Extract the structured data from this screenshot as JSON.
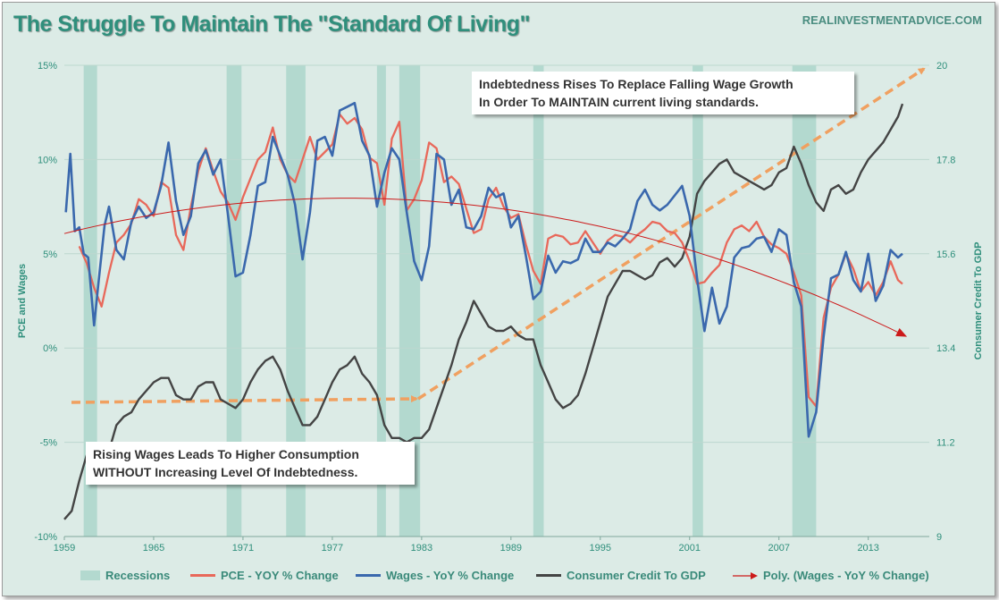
{
  "title": "The Struggle To Maintain The \"Standard Of Living\"",
  "source": "REALINVESTMENTADVICE.COM",
  "annotations": [
    "Indebtedness Rises To Replace Falling Wage Growth\nIn Order To MAINTAIN current living standards.",
    "Rising Wages Leads To Higher Consumption\nWITHOUT Increasing Level Of Indebtedness."
  ],
  "chart_data": {
    "type": "line",
    "title": "The Struggle To Maintain The \"Standard Of Living\"",
    "ylabel": "PCE and Wages",
    "y2label": "Consumer Credit To GDP",
    "x_ticks": [
      "1959",
      "1965",
      "1971",
      "1977",
      "1983",
      "1989",
      "1995",
      "2001",
      "2007",
      "2013"
    ],
    "y_ticks": [
      "15%",
      "10%",
      "5%",
      "0%",
      "-5%",
      "-10%"
    ],
    "y2_ticks": [
      "20",
      "17.8",
      "15.6",
      "13.4",
      "11.2",
      "9"
    ],
    "ylim": [
      -10,
      15
    ],
    "y2lim": [
      9,
      20
    ],
    "xlim": [
      1959,
      2017.1
    ],
    "recessions": [
      [
        1960.3,
        1961.2
      ],
      [
        1969.9,
        1970.9
      ],
      [
        1973.9,
        1975.2
      ],
      [
        1980.0,
        1980.6
      ],
      [
        1981.5,
        1982.9
      ],
      [
        1990.5,
        1991.2
      ],
      [
        2001.2,
        2001.9
      ],
      [
        2007.9,
        2009.5
      ]
    ],
    "legend": [
      "Recessions",
      "PCE - YOY % Change",
      "Wages - YoY % Change",
      "Consumer Credit To GDP",
      "Poly. (Wages - YoY % Change)"
    ],
    "colors": {
      "recession": "#b3d9cf",
      "pce": "#e8685a",
      "wages": "#3a68ad",
      "credit": "#444444",
      "poly": "#cc1a1a",
      "arrow": "#f0a060",
      "grid": "#bcd8cf"
    },
    "series": [
      {
        "name": "PCE - YOY % Change",
        "axis": "left",
        "x": [
          1960,
          1960.5,
          1961,
          1961.5,
          1962,
          1962.5,
          1963,
          1963.5,
          1964,
          1964.5,
          1965,
          1965.5,
          1966,
          1966.5,
          1967,
          1967.5,
          1968,
          1968.5,
          1969,
          1969.5,
          1970,
          1970.5,
          1971,
          1971.5,
          1972,
          1972.5,
          1973,
          1973.5,
          1974,
          1974.5,
          1975,
          1975.5,
          1976,
          1976.5,
          1977,
          1977.5,
          1978,
          1978.5,
          1979,
          1979.5,
          1980,
          1980.5,
          1981,
          1981.5,
          1982,
          1982.5,
          1983,
          1983.5,
          1984,
          1984.5,
          1985,
          1985.5,
          1986,
          1986.5,
          1987,
          1987.5,
          1988,
          1988.5,
          1989,
          1989.5,
          1990,
          1990.5,
          1991,
          1991.5,
          1992,
          1992.5,
          1993,
          1993.5,
          1994,
          1994.5,
          1995,
          1995.5,
          1996,
          1996.5,
          1997,
          1997.5,
          1998,
          1998.5,
          1999,
          1999.5,
          2000,
          2000.5,
          2001,
          2001.5,
          2002,
          2002.5,
          2003,
          2003.5,
          2004,
          2004.5,
          2005,
          2005.5,
          2006,
          2006.5,
          2007,
          2007.5,
          2008,
          2008.5,
          2009,
          2009.5,
          2010,
          2010.5,
          2011,
          2011.5,
          2012,
          2012.5,
          2013,
          2013.5,
          2014,
          2014.5,
          2015,
          2015.3
        ],
        "y": [
          5.4,
          4.5,
          3.2,
          2.2,
          4.0,
          5.6,
          6.0,
          6.6,
          7.9,
          7.6,
          7.0,
          8.8,
          8.5,
          6.0,
          5.2,
          7.5,
          9.4,
          10.6,
          9.4,
          8.3,
          7.7,
          6.8,
          8.0,
          9.0,
          10.0,
          10.4,
          11.7,
          10.0,
          9.2,
          8.8,
          10.0,
          11.2,
          10.0,
          10.4,
          10.8,
          12.4,
          11.9,
          12.2,
          11.6,
          10.1,
          9.8,
          7.6,
          11.1,
          12.0,
          7.3,
          7.9,
          8.9,
          10.9,
          10.6,
          8.8,
          9.1,
          8.7,
          7.4,
          6.1,
          6.3,
          7.9,
          8.5,
          7.5,
          6.9,
          7.1,
          5.5,
          4.1,
          3.4,
          5.8,
          6.0,
          5.9,
          5.5,
          5.6,
          6.2,
          5.6,
          5.0,
          5.7,
          6.0,
          5.9,
          5.6,
          6.0,
          6.3,
          6.7,
          6.6,
          6.2,
          6.1,
          5.6,
          4.6,
          3.4,
          3.5,
          4.0,
          4.4,
          5.6,
          6.3,
          6.5,
          6.2,
          6.7,
          5.9,
          5.5,
          5.3,
          5.0,
          4.0,
          2.8,
          -2.6,
          -3.1,
          1.6,
          3.2,
          3.9,
          5.0,
          4.2,
          3.0,
          3.5,
          2.8,
          3.5,
          4.6,
          3.6,
          3.4
        ]
      },
      {
        "name": "Wages - YoY % Change",
        "axis": "left",
        "x": [
          1959.1,
          1959.4,
          1959.7,
          1960,
          1960.3,
          1960.6,
          1961,
          1961.3,
          1961.7,
          1962,
          1962.5,
          1963,
          1963.5,
          1964,
          1964.5,
          1965,
          1965.5,
          1966,
          1966.5,
          1967,
          1967.5,
          1968,
          1968.5,
          1969,
          1969.5,
          1970,
          1970.5,
          1971,
          1971.5,
          1972,
          1972.5,
          1973,
          1973.5,
          1974,
          1974.5,
          1975,
          1975.5,
          1976,
          1976.5,
          1977,
          1977.5,
          1978,
          1978.5,
          1979,
          1979.5,
          1980,
          1980.5,
          1981,
          1981.5,
          1982,
          1982.5,
          1983,
          1983.5,
          1984,
          1984.5,
          1985,
          1985.5,
          1986,
          1986.5,
          1987,
          1987.5,
          1988,
          1988.5,
          1989,
          1989.5,
          1990,
          1990.5,
          1991,
          1991.5,
          1992,
          1992.5,
          1993,
          1993.5,
          1994,
          1994.5,
          1995,
          1995.5,
          1996,
          1996.5,
          1997,
          1997.5,
          1998,
          1998.5,
          1999,
          1999.5,
          2000,
          2000.5,
          2001,
          2001.5,
          2002,
          2002.5,
          2003,
          2003.5,
          2004,
          2004.5,
          2005,
          2005.5,
          2006,
          2006.5,
          2007,
          2007.5,
          2008,
          2008.5,
          2009,
          2009.5,
          2010,
          2010.5,
          2011,
          2011.5,
          2012,
          2012.5,
          2013,
          2013.5,
          2014,
          2014.5,
          2015,
          2015.3
        ],
        "y": [
          7.2,
          10.3,
          6.2,
          6.4,
          5.0,
          4.8,
          1.2,
          3.5,
          6.5,
          7.5,
          5.2,
          4.7,
          6.7,
          7.5,
          6.9,
          7.2,
          8.6,
          10.9,
          7.8,
          6.0,
          7.0,
          9.8,
          10.5,
          9.2,
          10.0,
          7.0,
          3.8,
          4.0,
          6.0,
          8.6,
          8.8,
          11.2,
          10.2,
          9.2,
          7.6,
          4.7,
          7.2,
          11.0,
          11.2,
          10.2,
          12.6,
          12.8,
          13.0,
          11.0,
          10.2,
          7.5,
          9.3,
          10.6,
          10.0,
          7.2,
          4.6,
          3.6,
          5.4,
          10.3,
          10.0,
          7.6,
          8.4,
          6.4,
          6.3,
          7.0,
          8.5,
          8.0,
          8.2,
          6.4,
          7.0,
          4.9,
          2.6,
          3.0,
          4.9,
          4.0,
          4.6,
          4.5,
          4.7,
          5.8,
          5.1,
          5.1,
          5.6,
          5.4,
          5.8,
          6.3,
          7.8,
          8.4,
          7.6,
          7.3,
          7.6,
          8.1,
          8.6,
          7.0,
          3.7,
          0.9,
          3.2,
          1.3,
          2.2,
          4.8,
          5.3,
          5.4,
          5.8,
          5.9,
          5.1,
          6.3,
          6.0,
          3.5,
          2.2,
          -4.7,
          -3.4,
          0.6,
          3.7,
          3.9,
          5.1,
          3.6,
          3.0,
          5.0,
          2.5,
          3.3,
          5.2,
          4.8,
          5.0
        ]
      },
      {
        "name": "Consumer Credit To GDP",
        "axis": "right",
        "x": [
          1959,
          1959.5,
          1960,
          1960.5,
          1961,
          1961.5,
          1962,
          1962.5,
          1963,
          1963.5,
          1964,
          1964.5,
          1965,
          1965.5,
          1966,
          1966.5,
          1967,
          1967.5,
          1968,
          1968.5,
          1969,
          1969.5,
          1970,
          1970.5,
          1971,
          1971.5,
          1972,
          1972.5,
          1973,
          1973.5,
          1974,
          1974.5,
          1975,
          1975.5,
          1976,
          1976.5,
          1977,
          1977.5,
          1978,
          1978.5,
          1979,
          1979.5,
          1980,
          1980.5,
          1981,
          1981.5,
          1982,
          1982.5,
          1983,
          1983.5,
          1984,
          1984.5,
          1985,
          1985.5,
          1986,
          1986.5,
          1987,
          1987.5,
          1988,
          1988.5,
          1989,
          1989.5,
          1990,
          1990.5,
          1991,
          1991.5,
          1992,
          1992.5,
          1993,
          1993.5,
          1994,
          1994.5,
          1995,
          1995.5,
          1996,
          1996.5,
          1997,
          1997.5,
          1998,
          1998.5,
          1999,
          1999.5,
          2000,
          2000.5,
          2001,
          2001.5,
          2002,
          2002.5,
          2003,
          2003.5,
          2004,
          2004.5,
          2005,
          2005.5,
          2006,
          2006.5,
          2007,
          2007.5,
          2008,
          2008.5,
          2009,
          2009.5,
          2010,
          2010.5,
          2011,
          2011.5,
          2012,
          2012.5,
          2013,
          2013.5,
          2014,
          2014.5,
          2015,
          2015.3
        ],
        "y": [
          9.4,
          9.6,
          10.3,
          10.9,
          10.6,
          10.6,
          11.0,
          11.6,
          11.8,
          11.9,
          12.2,
          12.4,
          12.6,
          12.7,
          12.7,
          12.3,
          12.2,
          12.2,
          12.5,
          12.6,
          12.6,
          12.2,
          12.1,
          12.0,
          12.2,
          12.6,
          12.9,
          13.1,
          13.2,
          12.9,
          12.4,
          12.0,
          11.6,
          11.6,
          11.8,
          12.2,
          12.6,
          12.9,
          13.0,
          13.2,
          12.8,
          12.6,
          12.3,
          11.6,
          11.3,
          11.3,
          11.2,
          11.3,
          11.3,
          11.5,
          12.0,
          12.5,
          13.0,
          13.6,
          14.0,
          14.5,
          14.2,
          13.9,
          13.8,
          13.8,
          13.9,
          13.7,
          13.6,
          13.6,
          13.0,
          12.6,
          12.2,
          12.0,
          12.1,
          12.3,
          12.8,
          13.4,
          14.0,
          14.6,
          14.9,
          15.2,
          15.2,
          15.1,
          15.0,
          15.1,
          15.4,
          15.5,
          15.3,
          15.5,
          16.0,
          17.0,
          17.3,
          17.5,
          17.7,
          17.8,
          17.5,
          17.4,
          17.3,
          17.2,
          17.1,
          17.2,
          17.5,
          17.6,
          18.1,
          17.7,
          17.2,
          16.8,
          16.6,
          17.1,
          17.2,
          17.0,
          17.1,
          17.5,
          17.8,
          18.0,
          18.2,
          18.5,
          18.8,
          19.1
        ]
      }
    ],
    "annotations": [
      "Indebtedness Rises To Replace Falling Wage Growth In Order To MAINTAIN current living standards.",
      "Rising Wages Leads To Higher Consumption WITHOUT Increasing Level Of Indebtedness."
    ]
  }
}
